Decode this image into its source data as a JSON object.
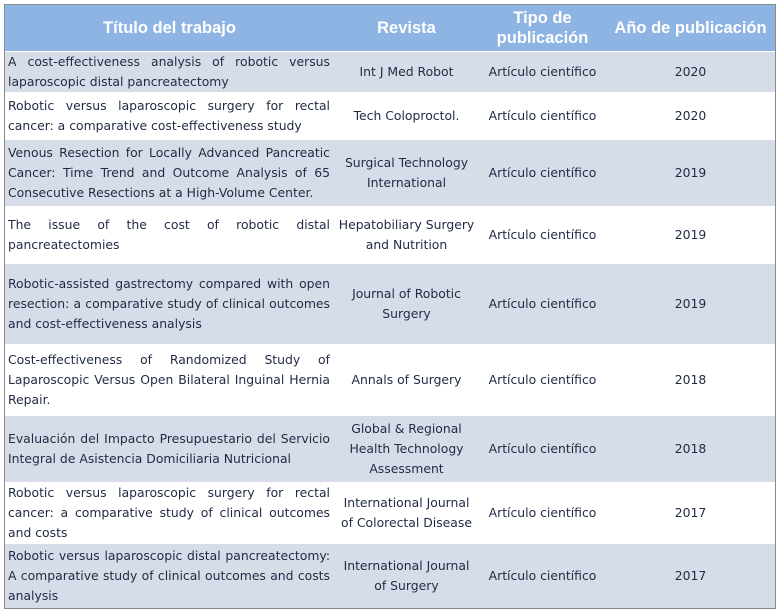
{
  "table": {
    "headers": {
      "title": "Título del trabajo",
      "journal": "Revista",
      "type": "Tipo de publicación",
      "year": "Año de publicación"
    },
    "rows": [
      {
        "title": "A cost-effectiveness analysis of robotic versus laparoscopic distal pancreatectomy",
        "journal": "Int J Med Robot",
        "type": "Artículo científico",
        "year": "2020"
      },
      {
        "title": "Robotic versus laparoscopic surgery for rectal cancer: a comparative cost-effectiveness study",
        "journal": "Tech Coloproctol.",
        "type": "Artículo científico",
        "year": "2020"
      },
      {
        "title": "Venous Resection for Locally Advanced Pancreatic Cancer: Time Trend and Outcome Analysis of 65 Consecutive Resections at a High-Volume Center.",
        "journal": "Surgical Technology International",
        "type": "Artículo científico",
        "year": "2019"
      },
      {
        "title": "The issue of the cost of robotic distal pancreatectomies",
        "journal": "Hepatobiliary Surgery and Nutrition",
        "type": "Artículo científico",
        "year": "2019"
      },
      {
        "title": "Robotic-assisted gastrectomy compared with open resection: a comparative study of clinical outcomes and cost-effectiveness analysis",
        "journal": "Journal of Robotic Surgery",
        "type": "Artículo científico",
        "year": "2019"
      },
      {
        "title": "Cost-effectiveness of Randomized Study of Laparoscopic Versus Open Bilateral Inguinal Hernia Repair.",
        "journal": "Annals of Surgery",
        "type": "Artículo científico",
        "year": "2018"
      },
      {
        "title": "Evaluación del Impacto Presupuestario del Servicio Integral de Asistencia Domiciliaria Nutricional",
        "journal": "Global & Regional Health Technology Assessment",
        "type": "Artículo científico",
        "year": "2018"
      },
      {
        "title": "Robotic versus laparoscopic surgery for rectal cancer: a comparative study of clinical outcomes and costs",
        "journal": "International Journal of Colorectal Disease",
        "type": "Artículo científico",
        "year": "2017"
      },
      {
        "title": "Robotic versus laparoscopic distal pancreatectomy: A comparative study of clinical outcomes and costs analysis",
        "journal": "International Journal of Surgery",
        "type": "Artículo científico",
        "year": "2017"
      }
    ]
  }
}
